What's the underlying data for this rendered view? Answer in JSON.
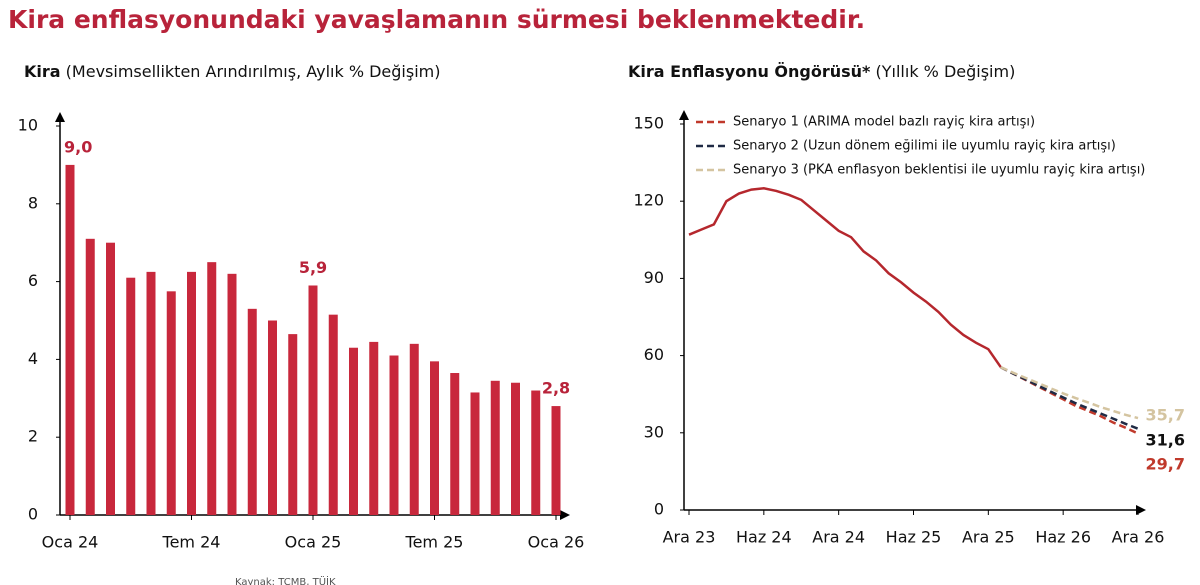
{
  "header": {
    "title": "Kira enflasyonundaki yavaşlamanın sürmesi beklenmektedir."
  },
  "source": "Kaynak: TCMB, TÜİK",
  "chart_data": [
    {
      "type": "bar",
      "title": "Kira",
      "subtitle": "(Mevsimsellikten Arındırılmış, Aylık % Değişim)",
      "categories": [
        "Oca 24",
        null,
        null,
        null,
        null,
        null,
        "Tem 24",
        null,
        null,
        null,
        null,
        null,
        "Oca 25",
        null,
        null,
        null,
        null,
        null,
        "Tem 25",
        null,
        null,
        null,
        null,
        null,
        "Oca 26"
      ],
      "values": [
        9.0,
        7.1,
        7.0,
        6.1,
        6.25,
        5.75,
        6.25,
        6.5,
        6.2,
        5.3,
        5.0,
        4.65,
        5.9,
        5.15,
        4.3,
        4.45,
        4.1,
        4.4,
        3.95,
        3.65,
        3.15,
        3.45,
        3.4,
        3.2,
        2.8
      ],
      "value_labels": [
        "9,0",
        null,
        null,
        null,
        null,
        null,
        null,
        null,
        null,
        null,
        null,
        null,
        "5,9",
        null,
        null,
        null,
        null,
        null,
        null,
        null,
        null,
        null,
        null,
        null,
        "2,8"
      ],
      "color": "#c8283c",
      "label_color": "#b8233a",
      "ylim": [
        0,
        10
      ],
      "yticks": [
        0,
        2,
        4,
        6,
        8,
        10
      ],
      "grid": false
    },
    {
      "type": "line",
      "title": "Kira Enflasyonu Öngörüsü*",
      "subtitle": "(Yıllık % Değişim)",
      "categories": [
        "Ara 23",
        null,
        null,
        null,
        null,
        null,
        "Haz 24",
        null,
        null,
        null,
        null,
        null,
        "Ara 24",
        null,
        null,
        null,
        null,
        null,
        "Haz 25",
        null,
        null,
        null,
        null,
        null,
        "Ara 25",
        null,
        null,
        null,
        null,
        null,
        "Haz 26",
        null,
        null,
        null,
        null,
        null,
        "Ara 26"
      ],
      "actual": {
        "color": "#b5272d",
        "values": [
          107,
          109,
          111,
          120,
          123,
          124.5,
          125,
          124,
          122.5,
          120.5,
          116.5,
          112.5,
          108.5,
          106,
          100.5,
          97,
          92,
          88.5,
          84.5,
          81,
          77,
          72,
          68,
          65,
          62.5,
          55.5,
          null,
          null,
          null,
          null,
          null,
          null,
          null,
          null,
          null,
          null,
          null
        ]
      },
      "series": [
        {
          "name": "Senaryo 1 (ARIMA model bazlı rayiç kira artışı)",
          "color": "#c0392b",
          "values": [
            null,
            null,
            null,
            null,
            null,
            null,
            null,
            null,
            null,
            null,
            null,
            null,
            null,
            null,
            null,
            null,
            null,
            null,
            null,
            null,
            null,
            null,
            null,
            null,
            null,
            55.5,
            53,
            50.5,
            48,
            45.5,
            43,
            40.5,
            38.5,
            36.5,
            34,
            32,
            29.7
          ],
          "end_label": "29,7"
        },
        {
          "name": "Senaryo 2 (Uzun dönem eğilimi ile uyumlu rayiç kira artışı)",
          "color": "#1f2a44",
          "values": [
            null,
            null,
            null,
            null,
            null,
            null,
            null,
            null,
            null,
            null,
            null,
            null,
            null,
            null,
            null,
            null,
            null,
            null,
            null,
            null,
            null,
            null,
            null,
            null,
            null,
            55.5,
            53,
            50.7,
            48.3,
            46,
            43.7,
            41.5,
            39.5,
            37.5,
            35.5,
            33.5,
            31.6
          ],
          "end_label": "31,6"
        },
        {
          "name": "Senaryo 3 (PKA enflasyon beklentisi ile  uyumlu  rayiç kira artışı)",
          "color": "#d4c4a0",
          "values": [
            null,
            null,
            null,
            null,
            null,
            null,
            null,
            null,
            null,
            null,
            null,
            null,
            null,
            null,
            null,
            null,
            null,
            null,
            null,
            null,
            null,
            null,
            null,
            null,
            null,
            55.5,
            53.3,
            51.3,
            49.3,
            47.3,
            45.3,
            43.5,
            41.8,
            40,
            38.5,
            37,
            35.7
          ],
          "end_label": "35,7"
        }
      ],
      "ylim": [
        0,
        150
      ],
      "yticks": [
        0,
        30,
        60,
        90,
        120,
        150
      ],
      "legend": "top-right"
    }
  ]
}
